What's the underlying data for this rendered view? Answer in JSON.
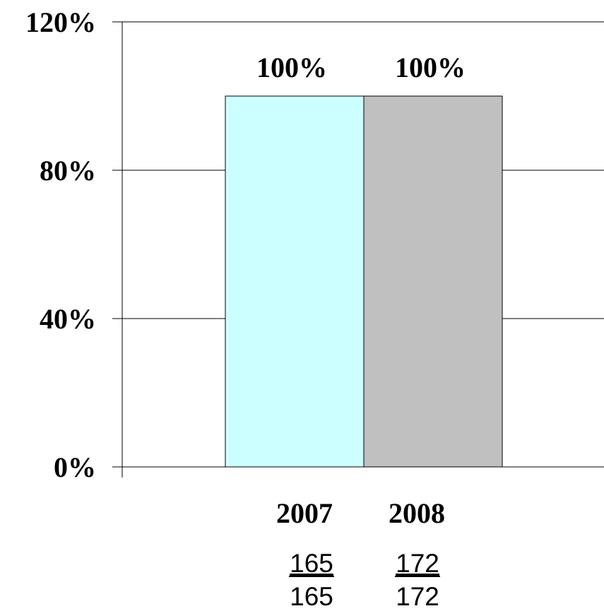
{
  "chart_data": {
    "type": "bar",
    "categories": [
      "2007",
      "2008"
    ],
    "values": [
      100,
      100
    ],
    "value_labels": [
      "100%",
      "100%"
    ],
    "ylim": [
      0,
      120
    ],
    "yticks": [
      0,
      40,
      80,
      120
    ],
    "ytick_labels": [
      "0%",
      "40%",
      "80%",
      "120%"
    ],
    "grid": true,
    "bar_colors": [
      "#ccffff",
      "#c0c0c0"
    ],
    "counts": [
      {
        "numerator": "165",
        "denominator": "165"
      },
      {
        "numerator": "172",
        "denominator": "172"
      }
    ]
  }
}
